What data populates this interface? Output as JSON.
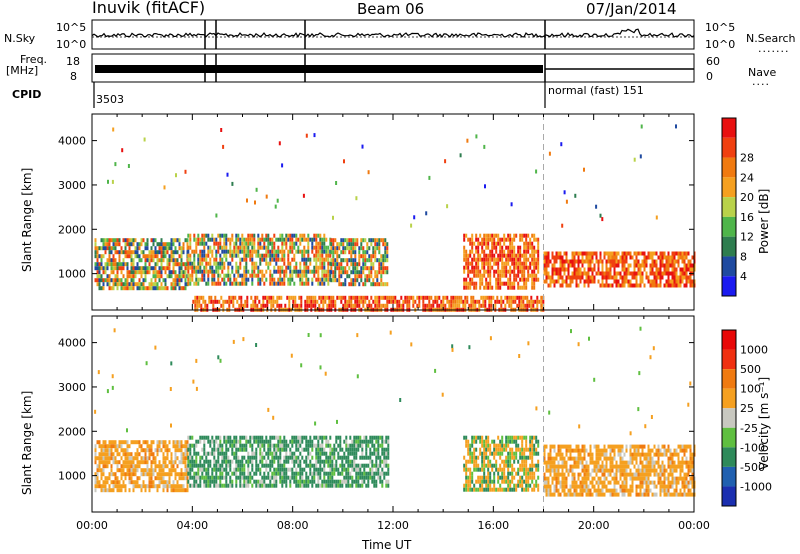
{
  "header": {
    "station": "Inuvik (fitACF)",
    "beam": "Beam 06",
    "date": "07/Jan/2014"
  },
  "strip": {
    "nsky_label": "N.Sky",
    "nsky_ticks": [
      "10^5",
      "10^0"
    ],
    "nsearch_label": "N.Search",
    "nsearch_ticks": [
      "10^5",
      "10^0"
    ],
    "freq_label": "Freq.",
    "freq_unit": "[MHz]",
    "freq_ticks": [
      "18",
      "8"
    ],
    "nave_label": "Nave",
    "nave_ticks": [
      "60",
      "0"
    ],
    "cpid_label": "CPID",
    "cpid_first": "3503",
    "cpid_second": "normal (fast) 151"
  },
  "chart_data": [
    {
      "type": "heatmap",
      "name": "power",
      "ylabel": "Slant Range [km]",
      "xlabel": "Time UT",
      "xlim": [
        0,
        24
      ],
      "ylim": [
        180,
        4600
      ],
      "yticks": [
        1000,
        2000,
        3000,
        4000
      ],
      "colorbar_label": "Power [dB]",
      "colorbar_ticks": [
        "4",
        "8",
        "12",
        "16",
        "20",
        "24",
        "28"
      ],
      "colorbar_colors": [
        "#1b1bf0",
        "#1f4aa0",
        "#2e7d4f",
        "#4fb54a",
        "#b9d24a",
        "#f5a020",
        "#f07a10",
        "#f04010",
        "#e81010"
      ],
      "echo_regions": [
        {
          "t": [
            0.1,
            3.8
          ],
          "r": [
            700,
            1800
          ],
          "level": "mid"
        },
        {
          "t": [
            3.8,
            9.5
          ],
          "r": [
            800,
            1900
          ],
          "level": "mid"
        },
        {
          "t": [
            9.5,
            11.8
          ],
          "r": [
            800,
            1800
          ],
          "level": "mid"
        },
        {
          "t": [
            14.8,
            17.8
          ],
          "r": [
            700,
            1900
          ],
          "level": "high"
        },
        {
          "t": [
            18.0,
            24.0
          ],
          "r": [
            700,
            1500
          ],
          "level": "high"
        },
        {
          "t": [
            4.0,
            18.0
          ],
          "r": [
            200,
            500
          ],
          "level": "high"
        }
      ]
    },
    {
      "type": "heatmap",
      "name": "velocity",
      "ylabel": "Slant Range [km]",
      "xlabel": "Time UT",
      "xlim": [
        0,
        24
      ],
      "ylim": [
        180,
        4600
      ],
      "yticks": [
        1000,
        2000,
        3000,
        4000
      ],
      "xticks": [
        "00:00",
        "04:00",
        "08:00",
        "12:00",
        "16:00",
        "20:00",
        "00:00"
      ],
      "colorbar_label": "Velocity [m s⁻¹]",
      "colorbar_ticks": [
        "1000",
        "500",
        "100",
        "25",
        "-25",
        "-100",
        "-500",
        "-1000"
      ],
      "colorbar_colors": [
        "#1b2fb0",
        "#2060b0",
        "#2e8a5a",
        "#5fbf40",
        "#c8c8c0",
        "#f5a020",
        "#f07a10",
        "#f03010",
        "#e80808"
      ],
      "echo_regions": [
        {
          "t": [
            0.1,
            3.8
          ],
          "r": [
            700,
            1800
          ],
          "level": "orange"
        },
        {
          "t": [
            3.8,
            11.8
          ],
          "r": [
            800,
            1900
          ],
          "level": "green"
        },
        {
          "t": [
            14.8,
            17.8
          ],
          "r": [
            700,
            1900
          ],
          "level": "mixed"
        },
        {
          "t": [
            18.0,
            24.0
          ],
          "r": [
            600,
            1700
          ],
          "level": "orange"
        }
      ]
    }
  ]
}
